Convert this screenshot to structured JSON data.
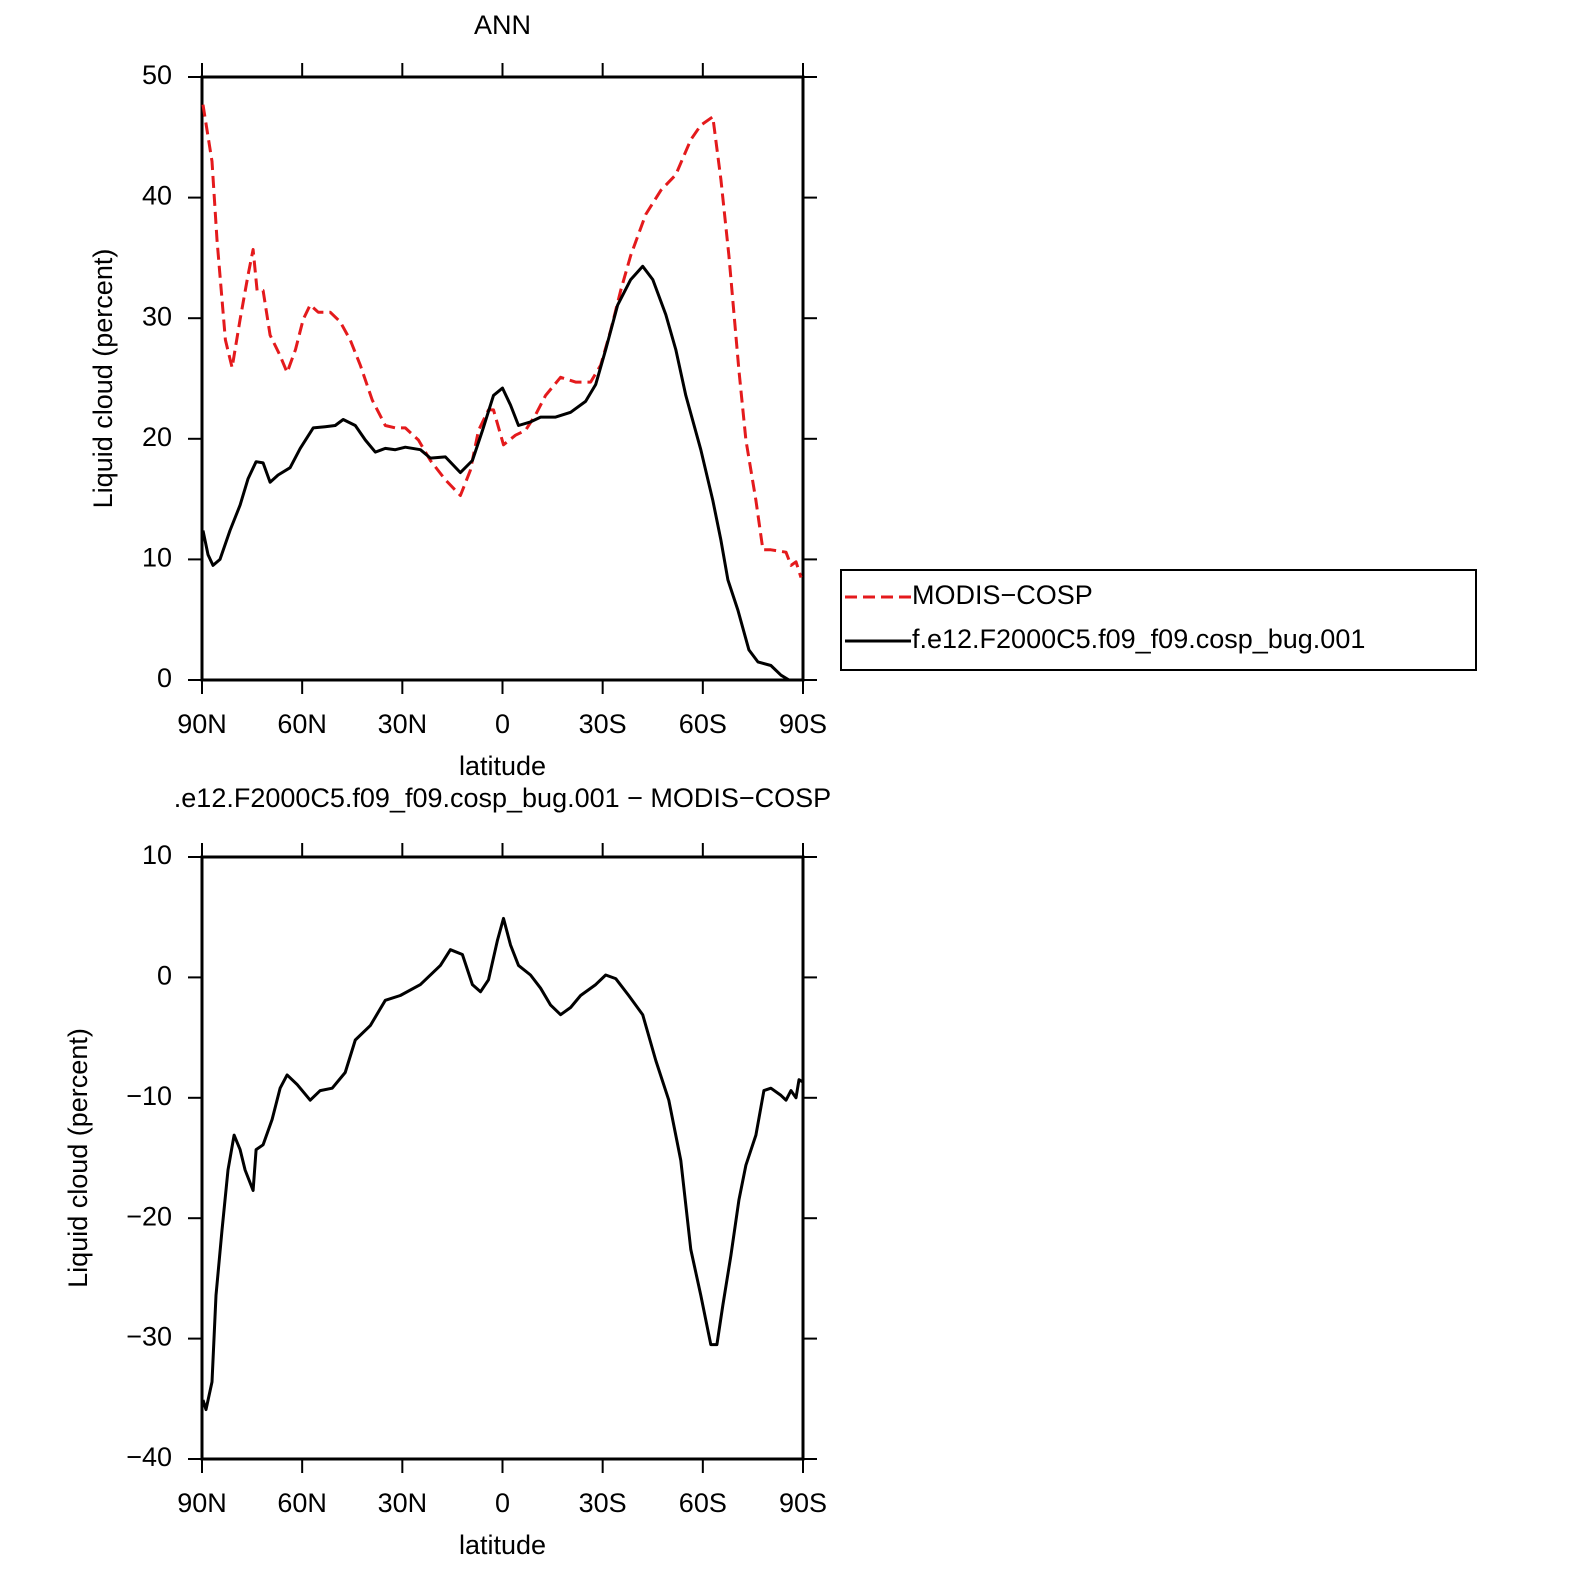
{
  "chart_data": [
    {
      "type": "line",
      "title": "ANN",
      "x_label": "latitude",
      "y_label": "Liquid cloud (percent)",
      "xlim": [
        90,
        -90
      ],
      "xticks": [
        {
          "value": 90,
          "label": "90N"
        },
        {
          "value": 60,
          "label": "60N"
        },
        {
          "value": 30,
          "label": "30N"
        },
        0,
        {
          "value": -30,
          "label": "30S"
        },
        {
          "value": -60,
          "label": "60S"
        },
        {
          "value": -90,
          "label": "90S"
        }
      ],
      "ylim": [
        0,
        50
      ],
      "yticks": [
        0,
        10,
        20,
        30,
        40,
        50
      ],
      "legend": "outside-right",
      "series": [
        {
          "name": "MODIS−COSP",
          "color": "#e41a1c",
          "dash": "dashed",
          "x": [
            89.7,
            87,
            85.5,
            83,
            81,
            78.6,
            76.2,
            74.7,
            73.5,
            71.7,
            69.6,
            66.6,
            64.5,
            62,
            59.7,
            57.6,
            55.2,
            51.6,
            48.6,
            45.6,
            42.6,
            39,
            35.1,
            32.1,
            29.1,
            25.2,
            21.6,
            17.1,
            12.6,
            9.6,
            7.2,
            4.2,
            2.7,
            -0.3,
            -3.9,
            -6.9,
            -9.9,
            -12.9,
            -17.4,
            -21.9,
            -26.4,
            -29.4,
            -32.4,
            -35.4,
            -38.4,
            -42.9,
            -47.4,
            -51.9,
            -56.4,
            -59.4,
            -63,
            -65.4,
            -67.8,
            -70.8,
            -72.9,
            -75.9,
            -78,
            -80.4,
            -84.9,
            -86.4,
            -87.9,
            -89.4
          ],
          "values": [
            47.7,
            43,
            36.5,
            28.2,
            25.9,
            29.9,
            33.6,
            35.7,
            32.3,
            32.3,
            28.6,
            26.9,
            25.5,
            27.4,
            29.9,
            31.1,
            30.5,
            30.5,
            29.7,
            28.2,
            26.1,
            23.2,
            21.1,
            20.9,
            20.9,
            19.9,
            18.2,
            16.6,
            15.3,
            17.4,
            20.7,
            22.4,
            22.4,
            19.5,
            20.3,
            20.7,
            22,
            23.6,
            25.1,
            24.7,
            24.7,
            26.1,
            29,
            32.3,
            35.2,
            38.6,
            40.6,
            41.9,
            44.8,
            46,
            46.7,
            41.5,
            35.2,
            25.7,
            19.9,
            14.9,
            10.8,
            10.8,
            10.6,
            9.5,
            9.8,
            8.5
          ]
        },
        {
          "name": "f.e12.F2000C5.f09_f09.cosp_bug.001",
          "color": "#000000",
          "dash": "solid",
          "x": [
            89.7,
            88.2,
            86.7,
            84.6,
            81.6,
            78.6,
            76.2,
            73.8,
            71.7,
            69.6,
            67.2,
            63.6,
            60.6,
            56.7,
            53.1,
            50.1,
            47.7,
            44.1,
            41.1,
            38.1,
            35.1,
            32.1,
            29.1,
            24.6,
            21.6,
            17.1,
            12.6,
            9,
            6,
            2.7,
            0,
            -2.4,
            -4.8,
            -8.4,
            -11.4,
            -15.9,
            -20.4,
            -24.9,
            -27.9,
            -30.9,
            -34.5,
            -38.4,
            -42,
            -45,
            -48.9,
            -51.9,
            -54.9,
            -59.4,
            -63,
            -65.4,
            -67.5,
            -70.5,
            -73.8,
            -76.5,
            -80.4,
            -83.4,
            -85.8
          ],
          "values": [
            12.4,
            10.4,
            9.5,
            10,
            12.4,
            14.5,
            16.7,
            18.1,
            18,
            16.4,
            17,
            17.6,
            19.2,
            20.9,
            21,
            21.1,
            21.6,
            21.1,
            19.9,
            18.9,
            19.2,
            19.1,
            19.3,
            19.1,
            18.4,
            18.5,
            17.2,
            18.2,
            20.7,
            23.6,
            24.2,
            22.8,
            21.1,
            21.4,
            21.8,
            21.8,
            22.2,
            23.1,
            24.5,
            27.4,
            31.1,
            33.2,
            34.3,
            33.2,
            30.3,
            27.4,
            23.6,
            19.1,
            14.9,
            11.6,
            8.3,
            5.8,
            2.5,
            1.5,
            1.2,
            0.4,
            0
          ]
        }
      ]
    },
    {
      "type": "line",
      "title": ".e12.F2000C5.f09_f09.cosp_bug.001 − MODIS−COSP",
      "x_label": "latitude",
      "y_label": "Liquid cloud (percent)",
      "xlim": [
        90,
        -90
      ],
      "xticks": [
        {
          "value": 90,
          "label": "90N"
        },
        {
          "value": 60,
          "label": "60N"
        },
        {
          "value": 30,
          "label": "30N"
        },
        0,
        {
          "value": -30,
          "label": "30S"
        },
        {
          "value": -60,
          "label": "60S"
        },
        {
          "value": -90,
          "label": "90S"
        }
      ],
      "ylim": [
        -40,
        10
      ],
      "yticks": [
        {
          "value": -40,
          "label": "−40"
        },
        {
          "value": -30,
          "label": "−30"
        },
        {
          "value": -20,
          "label": "−20"
        },
        {
          "value": -10,
          "label": "−10"
        },
        0,
        10
      ],
      "series": [
        {
          "color": "#000000",
          "dash": "solid",
          "x": [
            89.7,
            88.8,
            87,
            85.8,
            84,
            82.2,
            80.4,
            78.6,
            77.1,
            74.7,
            73.8,
            71.7,
            69,
            66.6,
            64.5,
            61.5,
            57.6,
            54.6,
            51,
            47.1,
            44.1,
            39.6,
            35.1,
            30.6,
            24.6,
            18.6,
            15.6,
            12,
            9,
            6.6,
            4.2,
            1.5,
            -0.3,
            -2.4,
            -4.8,
            -8.4,
            -11.4,
            -14.4,
            -17.4,
            -20.4,
            -23.4,
            -27.9,
            -30.9,
            -33.9,
            -37.8,
            -42,
            -45.9,
            -49.8,
            -53.4,
            -56.4,
            -59.4,
            -62.4,
            -64.2,
            -66,
            -68.4,
            -70.8,
            -72.9,
            -75.9,
            -78.3,
            -80.4,
            -83.4,
            -84.9,
            -86.4,
            -87.9,
            -88.8,
            -90
          ],
          "values": [
            -35.1,
            -35.9,
            -33.6,
            -26.4,
            -21,
            -16,
            -13.1,
            -14.3,
            -16,
            -17.7,
            -14.3,
            -13.9,
            -11.8,
            -9.2,
            -8.1,
            -8.9,
            -10.2,
            -9.4,
            -9.2,
            -7.9,
            -5.2,
            -4,
            -1.9,
            -1.5,
            -0.6,
            1,
            2.3,
            1.9,
            -0.6,
            -1.2,
            -0.2,
            3.1,
            4.9,
            2.7,
            1,
            0.2,
            -0.9,
            -2.3,
            -3.1,
            -2.5,
            -1.5,
            -0.6,
            0.2,
            -0.1,
            -1.5,
            -3.1,
            -6.9,
            -10.2,
            -15.2,
            -22.6,
            -26.4,
            -30.5,
            -30.5,
            -27.2,
            -23.1,
            -18.5,
            -15.6,
            -13.1,
            -9.4,
            -9.2,
            -9.8,
            -10.2,
            -9.4,
            -10,
            -8.5,
            -8.7
          ]
        }
      ]
    }
  ]
}
